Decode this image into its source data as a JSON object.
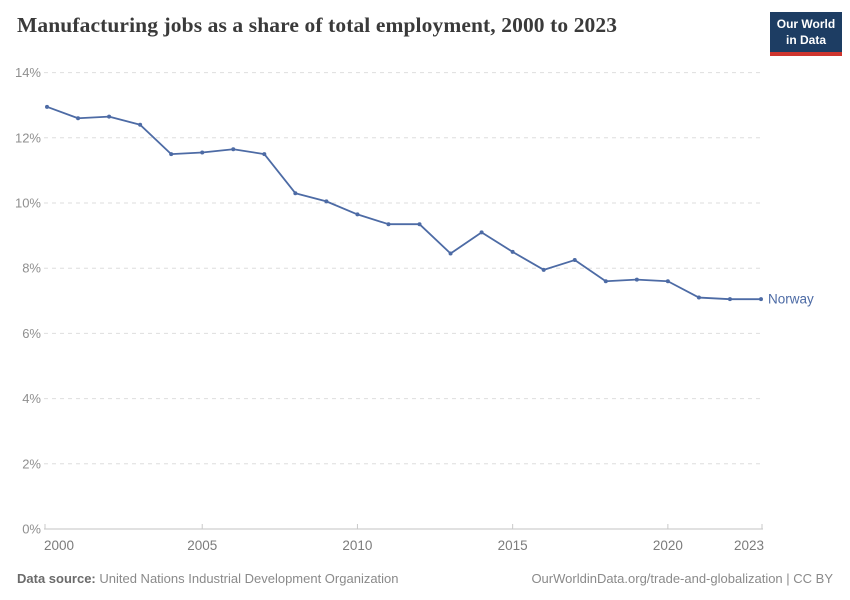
{
  "header": {
    "title": "Manufacturing jobs as a share of total employment, 2000 to 2023",
    "logo": {
      "line1": "Our World",
      "line2": "in Data"
    }
  },
  "chart_data": {
    "type": "line",
    "title": "Manufacturing jobs as a share of total employment, 2000 to 2023",
    "x": [
      2000,
      2001,
      2002,
      2003,
      2004,
      2005,
      2006,
      2007,
      2008,
      2009,
      2010,
      2011,
      2012,
      2013,
      2014,
      2015,
      2016,
      2017,
      2018,
      2019,
      2020,
      2021,
      2022,
      2023
    ],
    "series": [
      {
        "name": "Norway",
        "color": "#4d6ba5",
        "values": [
          12.95,
          12.6,
          12.65,
          12.4,
          11.5,
          11.55,
          11.65,
          11.5,
          10.3,
          10.05,
          9.65,
          9.35,
          9.35,
          8.45,
          9.1,
          8.5,
          7.95,
          8.25,
          7.6,
          7.65,
          7.6,
          7.1,
          7.05,
          7.05
        ]
      }
    ],
    "xlabel": "",
    "ylabel": "",
    "ylim": [
      0,
      14
    ],
    "yticks": [
      0,
      2,
      4,
      6,
      8,
      10,
      12,
      14
    ],
    "ytick_labels": [
      "0%",
      "2%",
      "4%",
      "6%",
      "8%",
      "10%",
      "12%",
      "14%"
    ],
    "xticks": [
      2000,
      2005,
      2010,
      2015,
      2020,
      2023
    ],
    "grid": true,
    "grid_style": "dashed",
    "legend_position": "end-of-line-label"
  },
  "footer": {
    "datasource_label": "Data source:",
    "datasource_value": " United Nations Industrial Development Organization",
    "link": "OurWorldinData.org/trade-and-globalization | CC BY"
  },
  "colors": {
    "line": "#4d6ba5",
    "logo_bg": "#1d3d63",
    "logo_accent": "#cf352e",
    "gridline": "#dedede",
    "axis": "#c3c3c3",
    "tick_label": "#8f8f8f",
    "title_text": "#3a3a3a",
    "footer_text": "#8a8a8a"
  }
}
